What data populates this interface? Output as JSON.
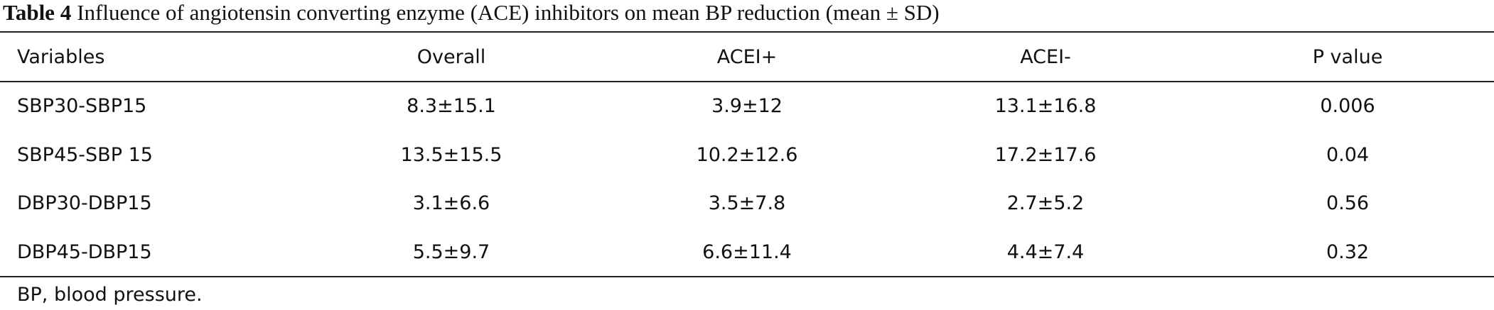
{
  "caption": {
    "label": "Table 4",
    "text": "Influence of angiotensin converting enzyme (ACE) inhibitors on mean BP reduction (mean ± SD)"
  },
  "table": {
    "header": [
      "Variables",
      "Overall",
      "ACEI+",
      "ACEI-",
      "P value"
    ],
    "rows": [
      [
        "SBP30-SBP15",
        "8.3±15.1",
        "3.9±12",
        "13.1±16.8",
        "0.006"
      ],
      [
        "SBP45-SBP 15",
        "13.5±15.5",
        "10.2±12.6",
        "17.2±17.6",
        "0.04"
      ],
      [
        "DBP30-DBP15",
        "3.1±6.6",
        "3.5±7.8",
        "2.7±5.2",
        "0.56"
      ],
      [
        "DBP45-DBP15",
        "5.5±9.7",
        "6.6±11.4",
        "4.4±7.4",
        "0.32"
      ]
    ]
  },
  "footnote": "BP, blood pressure."
}
